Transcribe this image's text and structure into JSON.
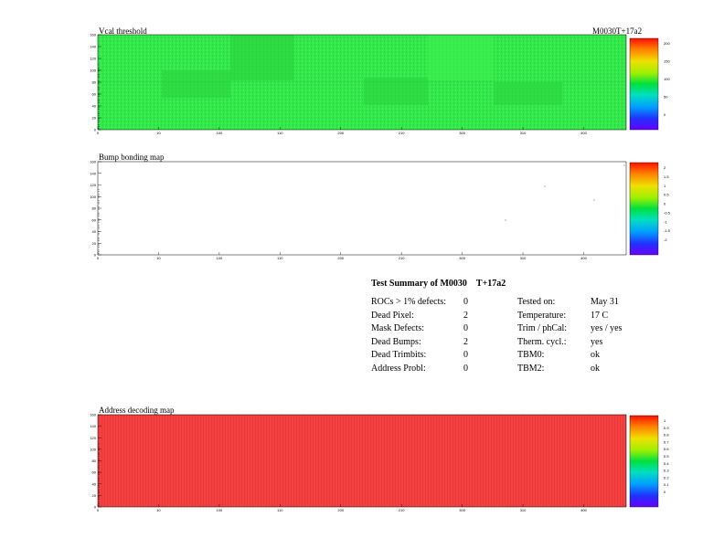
{
  "panels": [
    {
      "title": "Vcal threshold",
      "corner_label": "M0030T+17a2",
      "x_ticks": [
        "0",
        "10",
        "100",
        "110",
        "200",
        "210",
        "300",
        "310",
        "400"
      ],
      "y_ticks": [
        "0",
        "20",
        "40",
        "60",
        "80",
        "100",
        "120",
        "140",
        "160"
      ],
      "z_ticks": [
        "0",
        "50",
        "100",
        "150",
        "200"
      ],
      "colors": {
        "fill": "#33e84a",
        "fill_alt": "#2bd640",
        "fill_dark": "#22c93a"
      }
    },
    {
      "title": "Bump bonding map",
      "x_ticks": [
        "0",
        "10",
        "100",
        "110",
        "200",
        "210",
        "300",
        "310",
        "400"
      ],
      "y_ticks": [
        "0",
        "20",
        "40",
        "60",
        "80",
        "100",
        "120",
        "140",
        "160"
      ],
      "z_ticks": [
        "-2",
        "-1.5",
        "-1",
        "-0.5",
        "0",
        "0.5",
        "1",
        "1.5",
        "2"
      ],
      "dead_bumps": 2
    },
    {
      "title": "Address decoding map",
      "x_ticks": [
        "0",
        "10",
        "100",
        "110",
        "200",
        "210",
        "300",
        "310",
        "400"
      ],
      "y_ticks": [
        "0",
        "20",
        "40",
        "60",
        "80",
        "100",
        "120",
        "140",
        "160"
      ],
      "z_ticks": [
        "0",
        "0.1",
        "0.2",
        "0.3",
        "0.4",
        "0.5",
        "0.6",
        "0.7",
        "0.8",
        "0.9",
        "1"
      ],
      "colors": {
        "fill": "#f44040"
      }
    }
  ],
  "summary": {
    "title": "Test Summary of M0030",
    "title_suffix": "T+17a2",
    "left": [
      {
        "label": "ROCs > 1% defects:",
        "value": "0"
      },
      {
        "label": "Dead Pixel:",
        "value": "2"
      },
      {
        "label": "Mask Defects:",
        "value": "0"
      },
      {
        "label": "Dead Bumps:",
        "value": "2"
      },
      {
        "label": "Dead Trimbits:",
        "value": "0"
      },
      {
        "label": "Address Probl:",
        "value": "0"
      }
    ],
    "right": [
      {
        "label": "Tested on:",
        "value": "May 31"
      },
      {
        "label": "Temperature:",
        "value": "17 C"
      },
      {
        "label": "Trim / phCal:",
        "value": "yes / yes"
      },
      {
        "label": "Therm. cycl.:",
        "value": "yes"
      },
      {
        "label": "TBM0:",
        "value": "ok"
      },
      {
        "label": "TBM2:",
        "value": "ok"
      }
    ]
  },
  "chart_data": [
    {
      "type": "heatmap",
      "title": "Vcal threshold",
      "x_range": [
        0,
        416
      ],
      "y_range": [
        0,
        160
      ],
      "z_range": [
        0,
        250
      ],
      "description_values": {
        "typical_z": 150
      },
      "grid": false,
      "legend": "right colorbar"
    },
    {
      "type": "heatmap",
      "title": "Bump bonding map",
      "x_range": [
        0,
        416
      ],
      "y_range": [
        0,
        160
      ],
      "z_range": [
        -2,
        2
      ],
      "grid": false,
      "legend": "right colorbar"
    },
    {
      "type": "heatmap",
      "title": "Address decoding map",
      "x_range": [
        0,
        416
      ],
      "y_range": [
        0,
        160
      ],
      "z_range": [
        0,
        1
      ],
      "description_values": {
        "typical_z": 1
      },
      "grid": false,
      "legend": "right colorbar"
    }
  ]
}
